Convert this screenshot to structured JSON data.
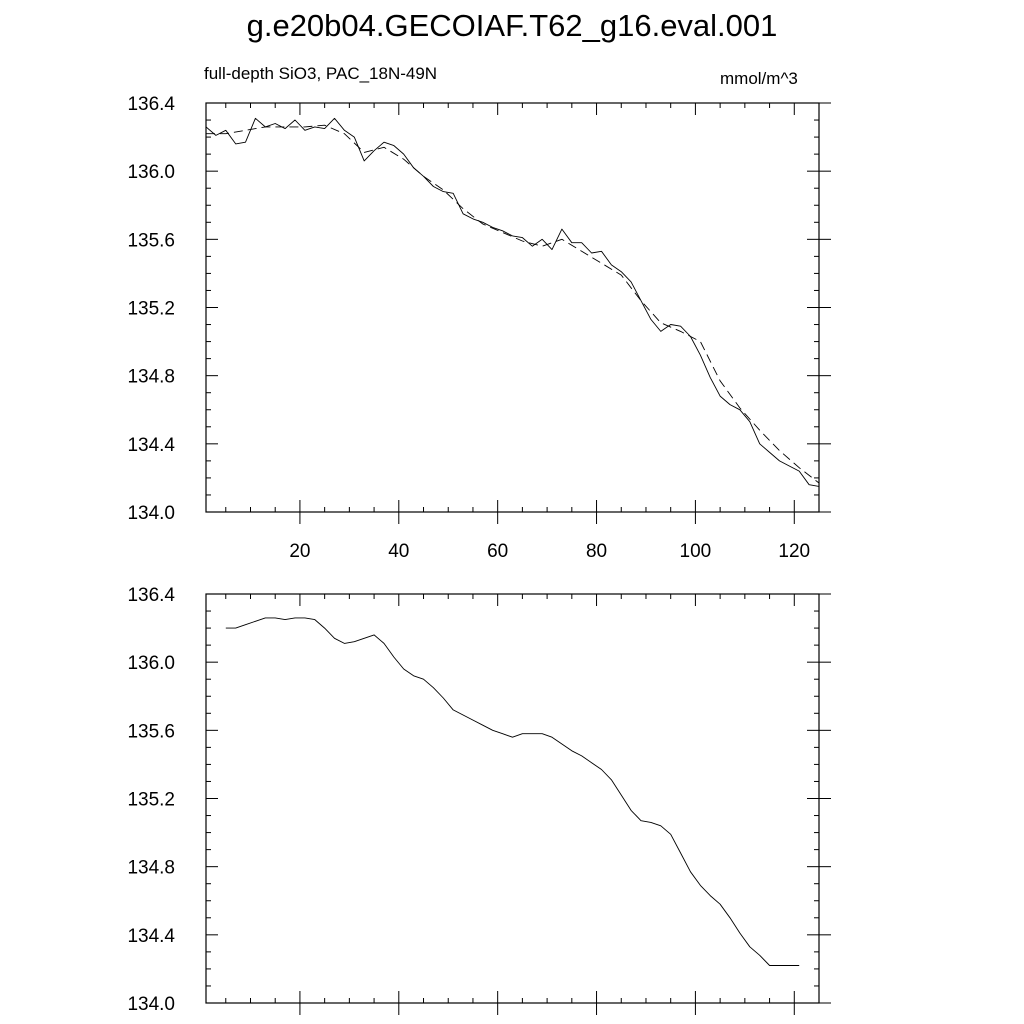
{
  "header": {
    "title": "g.e20b04.GECOIAF.T62_g16.eval.001",
    "subtitle_left": "full-depth SiO3, PAC_18N-49N",
    "subtitle_right": "mmol/m^3"
  },
  "chart_data": [
    {
      "type": "line",
      "title": "",
      "xlabel": "",
      "ylabel": "",
      "xlim": [
        1,
        125
      ],
      "ylim": [
        134.0,
        136.4
      ],
      "x_ticks": [
        20,
        40,
        60,
        80,
        100,
        120
      ],
      "y_ticks": [
        134.0,
        134.4,
        134.8,
        135.2,
        135.6,
        136.0,
        136.4
      ],
      "x_tick_labels": [
        "20",
        "40",
        "60",
        "80",
        "100",
        "120"
      ],
      "y_tick_labels": [
        "134.0",
        "134.4",
        "134.8",
        "135.2",
        "135.6",
        "136.0",
        "136.4"
      ],
      "grid": false,
      "series": [
        {
          "style": "solid",
          "x": [
            1,
            3,
            5,
            7,
            9,
            11,
            13,
            15,
            17,
            19,
            21,
            23,
            25,
            27,
            29,
            31,
            33,
            35,
            37,
            39,
            41,
            43,
            45,
            47,
            49,
            51,
            53,
            55,
            57,
            59,
            61,
            63,
            65,
            67,
            69,
            71,
            73,
            75,
            77,
            79,
            81,
            83,
            85,
            87,
            89,
            91,
            93,
            95,
            97,
            99,
            101,
            103,
            105,
            107,
            109,
            111,
            113,
            115,
            117,
            119,
            121,
            123,
            125
          ],
          "y": [
            136.26,
            136.21,
            136.24,
            136.16,
            136.17,
            136.31,
            136.26,
            136.28,
            136.25,
            136.3,
            136.24,
            136.26,
            136.25,
            136.31,
            136.24,
            136.2,
            136.06,
            136.12,
            136.17,
            136.15,
            136.1,
            136.02,
            135.97,
            135.91,
            135.88,
            135.87,
            135.75,
            135.72,
            135.7,
            135.67,
            135.65,
            135.62,
            135.61,
            135.56,
            135.6,
            135.54,
            135.66,
            135.58,
            135.58,
            135.52,
            135.53,
            135.45,
            135.41,
            135.35,
            135.24,
            135.13,
            135.06,
            135.1,
            135.09,
            135.03,
            134.92,
            134.79,
            134.68,
            134.63,
            134.6,
            134.53,
            134.4,
            134.35,
            134.3,
            134.27,
            134.24,
            134.16,
            134.15
          ]
        },
        {
          "style": "dashed",
          "x": [
            1,
            5,
            9,
            13,
            17,
            21,
            25,
            29,
            33,
            37,
            41,
            45,
            49,
            53,
            57,
            61,
            65,
            69,
            73,
            77,
            81,
            85,
            89,
            93,
            97,
            101,
            105,
            109,
            113,
            117,
            121,
            125
          ],
          "y": [
            136.22,
            136.22,
            136.24,
            136.26,
            136.26,
            136.26,
            136.27,
            136.22,
            136.11,
            136.14,
            136.07,
            135.97,
            135.89,
            135.78,
            135.69,
            135.64,
            135.59,
            135.56,
            135.6,
            135.53,
            135.46,
            135.39,
            135.24,
            135.11,
            135.06,
            135.0,
            134.77,
            134.61,
            134.48,
            134.36,
            134.26,
            134.17
          ]
        }
      ]
    },
    {
      "type": "line",
      "title": "",
      "xlabel": "",
      "ylabel": "",
      "xlim": [
        1,
        125
      ],
      "ylim": [
        134.0,
        136.4
      ],
      "x_ticks": [
        20,
        40,
        60,
        80,
        100,
        120
      ],
      "y_ticks": [
        134.0,
        134.4,
        134.8,
        135.2,
        135.6,
        136.0,
        136.4
      ],
      "x_tick_labels": [],
      "y_tick_labels": [
        "134.0",
        "134.4",
        "134.8",
        "135.2",
        "135.6",
        "136.0",
        "136.4"
      ],
      "grid": false,
      "series": [
        {
          "style": "solid",
          "x": [
            5,
            7,
            9,
            11,
            13,
            15,
            17,
            19,
            21,
            23,
            25,
            27,
            29,
            31,
            33,
            35,
            37,
            39,
            41,
            43,
            45,
            47,
            49,
            51,
            53,
            55,
            57,
            59,
            61,
            63,
            65,
            67,
            69,
            71,
            73,
            75,
            77,
            79,
            81,
            83,
            85,
            87,
            89,
            91,
            93,
            95,
            97,
            99,
            101,
            103,
            105,
            107,
            109,
            111,
            113,
            115,
            117,
            119,
            121
          ],
          "y": [
            136.2,
            136.2,
            136.22,
            136.24,
            136.26,
            136.26,
            136.25,
            136.26,
            136.26,
            136.25,
            136.2,
            136.14,
            136.11,
            136.12,
            136.14,
            136.16,
            136.11,
            136.03,
            135.96,
            135.92,
            135.9,
            135.85,
            135.79,
            135.72,
            135.69,
            135.66,
            135.63,
            135.6,
            135.58,
            135.56,
            135.58,
            135.58,
            135.58,
            135.56,
            135.52,
            135.48,
            135.45,
            135.41,
            135.37,
            135.31,
            135.22,
            135.13,
            135.07,
            135.06,
            135.04,
            134.99,
            134.88,
            134.77,
            134.69,
            134.63,
            134.58,
            134.5,
            134.41,
            134.33,
            134.28,
            134.22,
            134.22,
            134.22,
            134.22
          ]
        }
      ]
    }
  ]
}
